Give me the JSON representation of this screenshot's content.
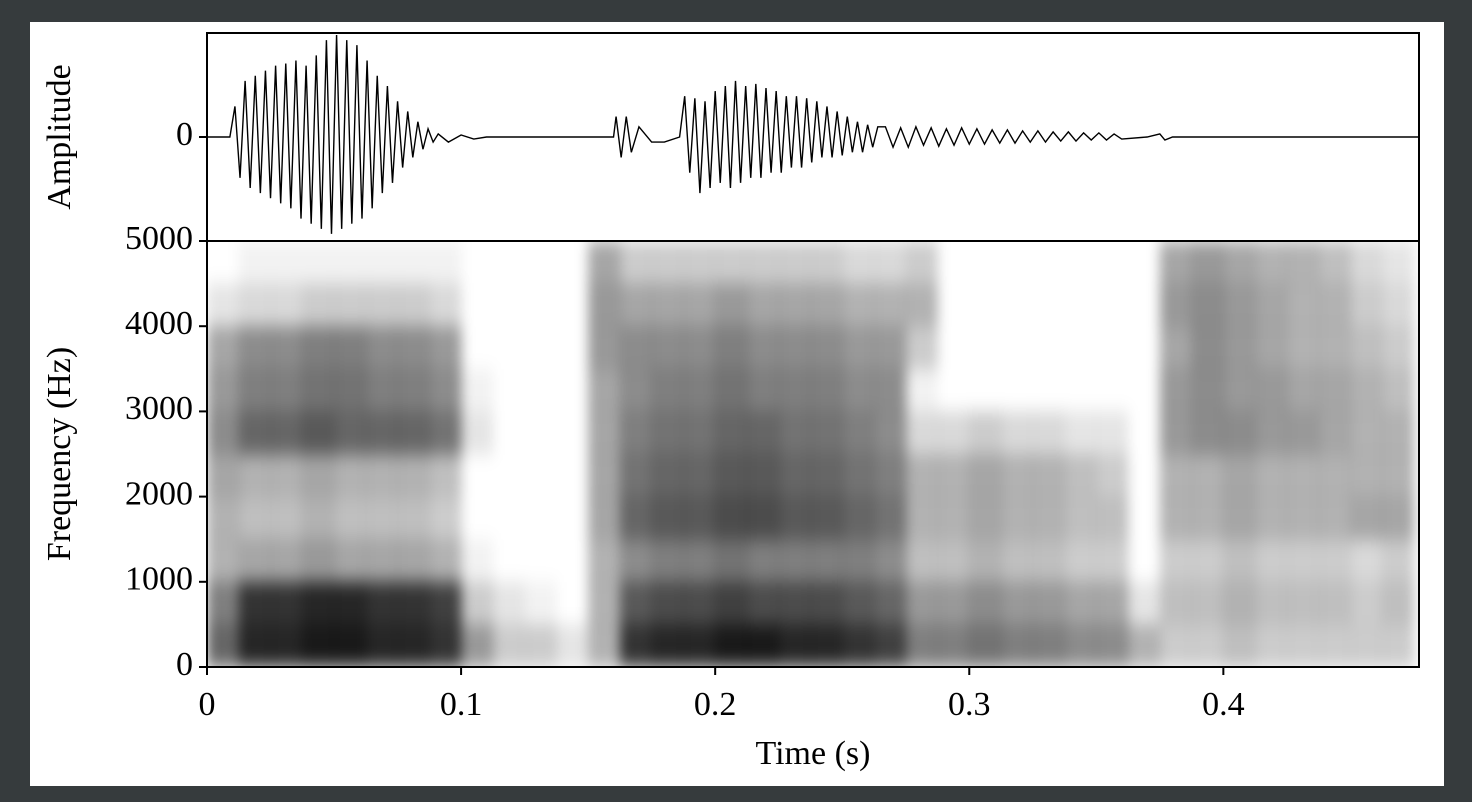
{
  "chart_data": [
    {
      "type": "line",
      "ylabel": "Amplitude",
      "color": "#000000",
      "xlim": [
        0,
        0.477
      ],
      "ylim": [
        -1,
        1
      ],
      "yticks": [
        0
      ],
      "x": [
        0,
        0.005,
        0.009,
        0.011,
        0.013,
        0.015,
        0.017,
        0.019,
        0.021,
        0.023,
        0.025,
        0.027,
        0.029,
        0.031,
        0.033,
        0.035,
        0.037,
        0.039,
        0.041,
        0.043,
        0.045,
        0.047,
        0.049,
        0.051,
        0.053,
        0.055,
        0.057,
        0.059,
        0.061,
        0.063,
        0.065,
        0.067,
        0.069,
        0.071,
        0.073,
        0.075,
        0.077,
        0.079,
        0.081,
        0.083,
        0.085,
        0.087,
        0.089,
        0.091,
        0.095,
        0.1,
        0.105,
        0.11,
        0.16,
        0.161,
        0.163,
        0.165,
        0.167,
        0.17,
        0.175,
        0.18,
        0.186,
        0.188,
        0.19,
        0.192,
        0.194,
        0.196,
        0.198,
        0.2,
        0.202,
        0.204,
        0.206,
        0.208,
        0.21,
        0.212,
        0.214,
        0.216,
        0.218,
        0.22,
        0.222,
        0.224,
        0.226,
        0.228,
        0.23,
        0.232,
        0.234,
        0.236,
        0.238,
        0.24,
        0.242,
        0.244,
        0.246,
        0.248,
        0.25,
        0.252,
        0.254,
        0.256,
        0.258,
        0.26,
        0.262,
        0.264,
        0.267,
        0.27,
        0.273,
        0.276,
        0.279,
        0.282,
        0.285,
        0.288,
        0.291,
        0.294,
        0.297,
        0.3,
        0.303,
        0.306,
        0.309,
        0.312,
        0.315,
        0.318,
        0.321,
        0.324,
        0.327,
        0.33,
        0.333,
        0.336,
        0.339,
        0.342,
        0.345,
        0.348,
        0.351,
        0.354,
        0.357,
        0.36,
        0.37,
        0.375,
        0.377,
        0.38,
        0.477
      ],
      "values": [
        0,
        0,
        0,
        0.3,
        -0.4,
        0.55,
        -0.5,
        0.6,
        -0.55,
        0.65,
        -0.6,
        0.7,
        -0.65,
        0.72,
        -0.7,
        0.75,
        -0.8,
        0.7,
        -0.85,
        0.8,
        -0.9,
        0.95,
        -0.95,
        1.0,
        -0.9,
        0.95,
        -0.85,
        0.9,
        -0.8,
        0.75,
        -0.7,
        0.6,
        -0.55,
        0.5,
        -0.45,
        0.35,
        -0.3,
        0.25,
        -0.2,
        0.15,
        -0.12,
        0.08,
        -0.05,
        0.03,
        -0.05,
        0.02,
        -0.02,
        0,
        0,
        0.2,
        -0.2,
        0.2,
        -0.15,
        0.1,
        -0.05,
        -0.05,
        0,
        0.4,
        -0.35,
        0.38,
        -0.55,
        0.35,
        -0.5,
        0.45,
        -0.45,
        0.5,
        -0.5,
        0.55,
        -0.45,
        0.5,
        -0.4,
        0.52,
        -0.4,
        0.48,
        -0.35,
        0.45,
        -0.35,
        0.4,
        -0.3,
        0.4,
        -0.3,
        0.38,
        -0.25,
        0.35,
        -0.2,
        0.3,
        -0.2,
        0.25,
        -0.18,
        0.2,
        -0.15,
        0.15,
        -0.15,
        0.12,
        -0.1,
        0.1,
        0.1,
        -0.1,
        0.09,
        -0.1,
        0.1,
        -0.08,
        0.09,
        -0.09,
        0.08,
        -0.08,
        0.09,
        -0.07,
        0.08,
        -0.07,
        0.07,
        -0.06,
        0.07,
        -0.06,
        0.06,
        -0.05,
        0.06,
        -0.05,
        0.05,
        -0.04,
        0.05,
        -0.04,
        0.04,
        -0.03,
        0.04,
        -0.03,
        0.03,
        -0.02,
        0,
        0.03,
        -0.03,
        0,
        0
      ]
    },
    {
      "type": "heatmap",
      "xlabel": "Time (s)",
      "ylabel": "Frequency (Hz)",
      "color": "#000000",
      "xlim": [
        0,
        0.477
      ],
      "ylim": [
        0,
        5000
      ],
      "xticks": [
        0,
        0.1,
        0.2,
        0.3,
        0.4
      ],
      "yticks": [
        0,
        1000,
        2000,
        3000,
        4000,
        5000
      ],
      "xbins": [
        0,
        0.0125,
        0.025,
        0.0375,
        0.05,
        0.0625,
        0.075,
        0.0875,
        0.1,
        0.1125,
        0.125,
        0.1375,
        0.15,
        0.1625,
        0.175,
        0.1875,
        0.2,
        0.2125,
        0.225,
        0.2375,
        0.25,
        0.2625,
        0.275,
        0.2875,
        0.3,
        0.3125,
        0.325,
        0.3375,
        0.35,
        0.3625,
        0.375,
        0.3875,
        0.4,
        0.4125,
        0.425,
        0.4375,
        0.45,
        0.4625,
        0.475
      ],
      "ybins": [
        0,
        500,
        1000,
        1500,
        2000,
        2500,
        3000,
        3500,
        4000,
        4500,
        5000
      ],
      "z": [
        [
          0.6,
          0.85,
          0.85,
          0.9,
          0.9,
          0.85,
          0.85,
          0.8,
          0.4,
          0.2,
          0.2,
          0.1,
          0.3,
          0.8,
          0.85,
          0.85,
          0.9,
          0.9,
          0.85,
          0.85,
          0.8,
          0.75,
          0.5,
          0.5,
          0.55,
          0.5,
          0.5,
          0.45,
          0.45,
          0.3,
          0.2,
          0.2,
          0.25,
          0.2,
          0.2,
          0.2,
          0.2,
          0.2
        ],
        [
          0.5,
          0.8,
          0.8,
          0.85,
          0.85,
          0.8,
          0.8,
          0.75,
          0.2,
          0.1,
          0.05,
          0,
          0.3,
          0.65,
          0.7,
          0.7,
          0.75,
          0.7,
          0.7,
          0.7,
          0.65,
          0.6,
          0.4,
          0.4,
          0.45,
          0.4,
          0.4,
          0.35,
          0.35,
          0.1,
          0.25,
          0.25,
          0.3,
          0.25,
          0.25,
          0.25,
          0.2,
          0.25
        ],
        [
          0.3,
          0.35,
          0.35,
          0.4,
          0.35,
          0.35,
          0.35,
          0.3,
          0.05,
          0,
          0,
          0,
          0.3,
          0.45,
          0.5,
          0.5,
          0.55,
          0.5,
          0.5,
          0.5,
          0.5,
          0.45,
          0.25,
          0.25,
          0.3,
          0.25,
          0.25,
          0.2,
          0.2,
          0,
          0.2,
          0.2,
          0.25,
          0.2,
          0.2,
          0.2,
          0.15,
          0.2
        ],
        [
          0.3,
          0.25,
          0.25,
          0.3,
          0.25,
          0.25,
          0.25,
          0.2,
          0,
          0,
          0,
          0,
          0.35,
          0.6,
          0.65,
          0.65,
          0.7,
          0.7,
          0.65,
          0.65,
          0.6,
          0.55,
          0.3,
          0.3,
          0.35,
          0.3,
          0.3,
          0.25,
          0.25,
          0,
          0.3,
          0.3,
          0.35,
          0.3,
          0.3,
          0.3,
          0.35,
          0.35
        ],
        [
          0.35,
          0.3,
          0.3,
          0.35,
          0.3,
          0.3,
          0.3,
          0.25,
          0,
          0,
          0,
          0,
          0.35,
          0.55,
          0.6,
          0.6,
          0.65,
          0.65,
          0.6,
          0.6,
          0.55,
          0.5,
          0.3,
          0.3,
          0.35,
          0.3,
          0.3,
          0.25,
          0.2,
          0,
          0.3,
          0.3,
          0.35,
          0.3,
          0.3,
          0.3,
          0.3,
          0.3
        ],
        [
          0.45,
          0.6,
          0.6,
          0.65,
          0.6,
          0.6,
          0.6,
          0.55,
          0.1,
          0,
          0,
          0,
          0.35,
          0.5,
          0.55,
          0.55,
          0.6,
          0.6,
          0.55,
          0.55,
          0.5,
          0.45,
          0.15,
          0.15,
          0.2,
          0.15,
          0.15,
          0.1,
          0.1,
          0,
          0.4,
          0.45,
          0.45,
          0.4,
          0.4,
          0.35,
          0.3,
          0.3
        ],
        [
          0.4,
          0.5,
          0.5,
          0.55,
          0.55,
          0.5,
          0.5,
          0.45,
          0.05,
          0,
          0,
          0,
          0.35,
          0.45,
          0.5,
          0.5,
          0.55,
          0.5,
          0.5,
          0.5,
          0.45,
          0.45,
          0.05,
          0,
          0,
          0,
          0,
          0,
          0,
          0,
          0.4,
          0.45,
          0.4,
          0.4,
          0.35,
          0.35,
          0.3,
          0.25
        ],
        [
          0.35,
          0.45,
          0.45,
          0.5,
          0.5,
          0.45,
          0.45,
          0.4,
          0,
          0,
          0,
          0,
          0.4,
          0.45,
          0.45,
          0.45,
          0.5,
          0.45,
          0.45,
          0.45,
          0.4,
          0.4,
          0.2,
          0,
          0,
          0,
          0,
          0,
          0,
          0,
          0.35,
          0.45,
          0.4,
          0.35,
          0.3,
          0.3,
          0.25,
          0.2
        ],
        [
          0.1,
          0.15,
          0.15,
          0.2,
          0.2,
          0.2,
          0.2,
          0.15,
          0,
          0,
          0,
          0,
          0.4,
          0.35,
          0.35,
          0.35,
          0.4,
          0.35,
          0.35,
          0.35,
          0.3,
          0.3,
          0.3,
          0,
          0,
          0,
          0,
          0,
          0,
          0,
          0.4,
          0.45,
          0.4,
          0.35,
          0.3,
          0.3,
          0.2,
          0.15
        ],
        [
          0,
          0.05,
          0.05,
          0.05,
          0.05,
          0.05,
          0.05,
          0.05,
          0,
          0,
          0,
          0,
          0.35,
          0.2,
          0.2,
          0.2,
          0.2,
          0.2,
          0.2,
          0.2,
          0.15,
          0.15,
          0.2,
          0,
          0,
          0,
          0,
          0,
          0,
          0,
          0.35,
          0.4,
          0.35,
          0.3,
          0.3,
          0.25,
          0.15,
          0.1
        ]
      ]
    }
  ]
}
